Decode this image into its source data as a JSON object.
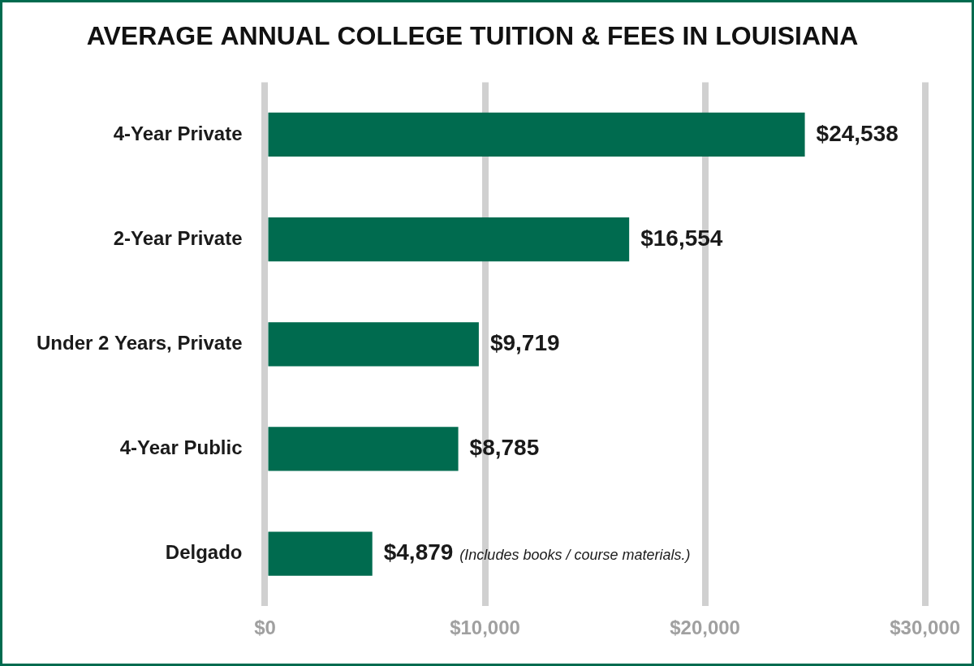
{
  "chart_data": {
    "type": "bar",
    "orientation": "horizontal",
    "title": "AVERAGE ANNUAL COLLEGE TUITION & FEES IN LOUISIANA",
    "categories": [
      "4-Year Private",
      "2-Year Private",
      "Under 2 Years, Private",
      "4-Year Public",
      "Delgado"
    ],
    "values": [
      24538,
      16554,
      9719,
      8785,
      4879
    ],
    "value_labels": [
      "$24,538",
      "$16,554",
      "$9,719",
      "$8,785",
      "$4,879"
    ],
    "data_labels": true,
    "color": "#006b4f",
    "xlim": [
      0,
      30000
    ],
    "xticks": [
      {
        "value": 0,
        "label": "$0"
      },
      {
        "value": 10000,
        "label": "$10,000"
      },
      {
        "value": 20000,
        "label": "$20,000"
      },
      {
        "value": 30000,
        "label": "$30,000"
      }
    ],
    "grid": true,
    "annotations": [
      {
        "category": "Delgado",
        "text": "(Includes books / course materials.)"
      }
    ]
  }
}
